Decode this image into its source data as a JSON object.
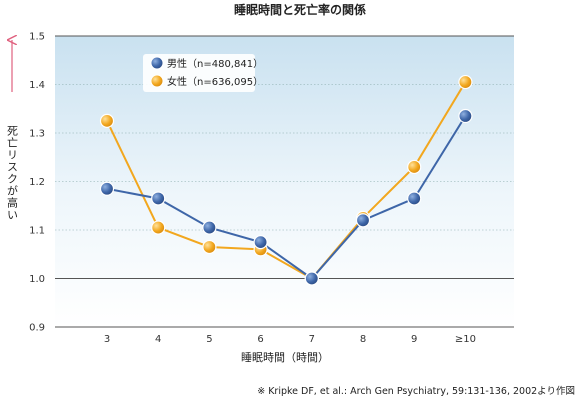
{
  "chart_data": {
    "type": "line",
    "title": "睡眠時間と死亡率の関係",
    "xlabel": "睡眠時間（時間）",
    "ylabel": "死亡リスクが高い",
    "categories": [
      "3",
      "4",
      "5",
      "6",
      "7",
      "8",
      "9",
      "≥10"
    ],
    "ylim": [
      0.9,
      1.5
    ],
    "yticks": [
      "0.9",
      "1.0",
      "1.1",
      "1.2",
      "1.3",
      "1.4",
      "1.5"
    ],
    "grid": true,
    "legend_position": "top-left",
    "series": [
      {
        "name": "男性（n=480,841）",
        "color": "#3e66a8",
        "values": [
          1.185,
          1.165,
          1.105,
          1.075,
          1.0,
          1.12,
          1.165,
          1.335
        ]
      },
      {
        "name": "女性（n=636,095）",
        "color": "#f2a71e",
        "values": [
          1.325,
          1.105,
          1.065,
          1.06,
          1.0,
          1.125,
          1.23,
          1.405
        ]
      }
    ],
    "source": "※  Kripke DF, et al.: Arch Gen Psychiatry, 59:131-136, 2002より作図"
  }
}
